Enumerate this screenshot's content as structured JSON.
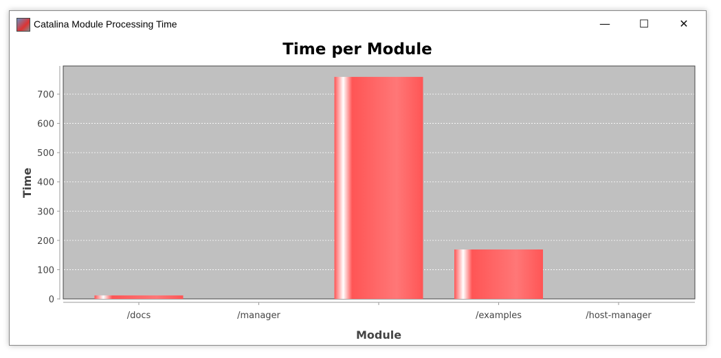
{
  "window": {
    "title": "Catalina Module Processing Time",
    "minimize": "—",
    "maximize": "☐",
    "close": "✕"
  },
  "chart_data": {
    "type": "bar",
    "title": "Time per Module",
    "xlabel": "Module",
    "ylabel": "Time",
    "categories": [
      "/docs",
      "/manager",
      "",
      "/examples",
      "/host-manager"
    ],
    "values": [
      12,
      0,
      759,
      169,
      0
    ],
    "ylim": [
      0,
      795
    ],
    "yticks": [
      0,
      100,
      200,
      300,
      400,
      500,
      600,
      700
    ],
    "grid": true,
    "colors": {
      "bar": "#ff5555",
      "plot_bg": "#c0c0c0",
      "grid": "#ffffff"
    }
  }
}
